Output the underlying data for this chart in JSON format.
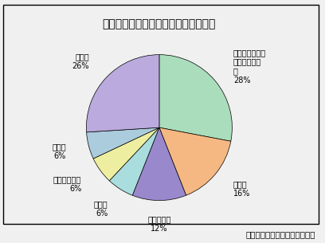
{
  "title": "セカンドライフで活動する企業の業種",
  "footnote": "（シード・プランニング調べ）",
  "labels": [
    "インターネット\n関連サービス\n業",
    "広告業",
    "サービス業",
    "通信業",
    "公的機関など",
    "製造業",
    "その他"
  ],
  "pct_labels": [
    "28%",
    "16%",
    "12%",
    "6%",
    "6%",
    "6%",
    "26%"
  ],
  "values": [
    28,
    16,
    12,
    6,
    6,
    6,
    26
  ],
  "colors": [
    "#aaddbb",
    "#f5b882",
    "#9988cc",
    "#aadddd",
    "#eeeea0",
    "#aaccdd",
    "#bbaadd"
  ],
  "startangle": 90,
  "background_color": "#f0f0f0",
  "title_fontsize": 10,
  "footnote_fontsize": 7.5,
  "label_fontsize": 7
}
